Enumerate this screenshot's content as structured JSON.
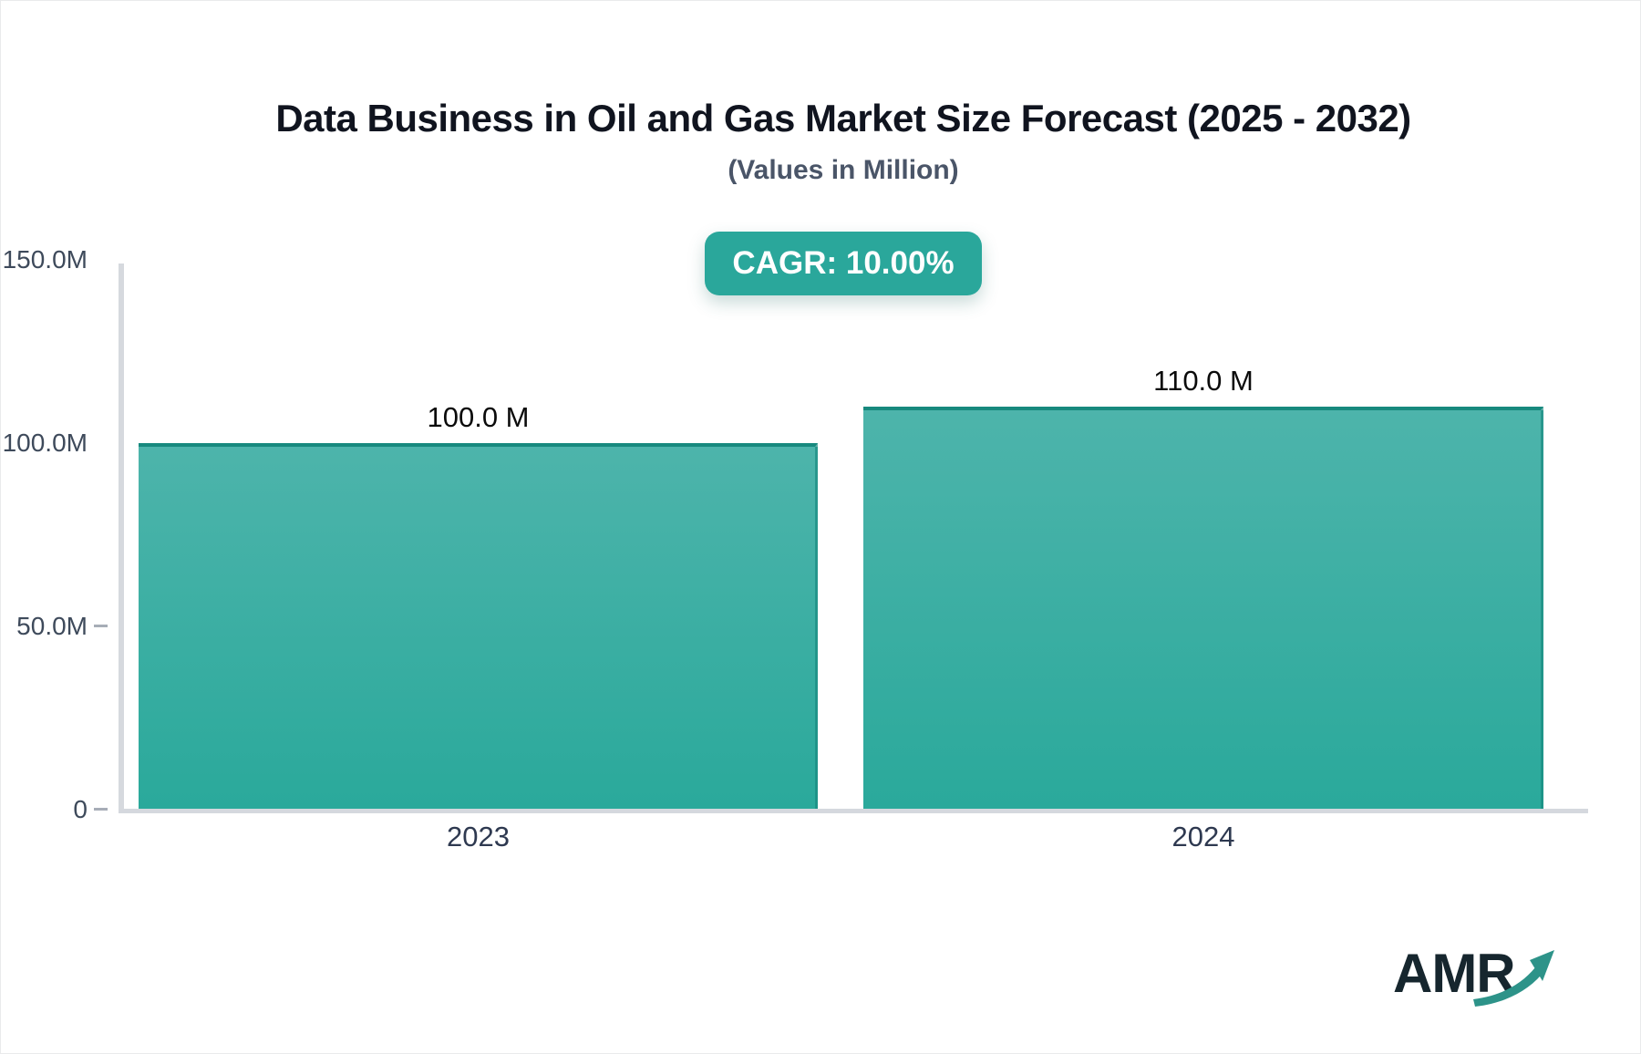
{
  "title": "Data Business in Oil and Gas Market Size Forecast (2025 - 2032)",
  "subtitle": "(Values in Million)",
  "badge": {
    "label": "CAGR: 10.00%"
  },
  "logo": {
    "text": "AMR"
  },
  "colors": {
    "accent_teal": "#2aa79b",
    "bar_gradient_top": "#4db4ab",
    "bar_gradient_bottom": "#2aa99b",
    "bar_top_border": "#17897e",
    "axis_line": "#d6d9de",
    "title_text": "#10141f",
    "subtitle_text": "#4a5568",
    "logo_text": "#16262e",
    "logo_arrow": "#2d9389"
  },
  "chart_data": {
    "type": "bar",
    "title": "Data Business in Oil and Gas Market Size Forecast (2025 - 2032)",
    "subtitle": "(Values in Million)",
    "unit": "Million",
    "cagr": "10.00%",
    "categories": [
      "2023",
      "2024"
    ],
    "values": [
      100.0,
      110.0
    ],
    "value_labels": [
      "100.0 M",
      "110.0 M"
    ],
    "ylim": [
      0,
      150
    ],
    "yticks": [
      {
        "label": "150.0M",
        "value": 150,
        "tick": false
      },
      {
        "label": "100.0M",
        "value": 100,
        "tick": false
      },
      {
        "label": "50.0M",
        "value": 50,
        "tick": true
      },
      {
        "label": "0",
        "value": 0,
        "tick": true
      }
    ],
    "grid": false,
    "legend": false
  }
}
